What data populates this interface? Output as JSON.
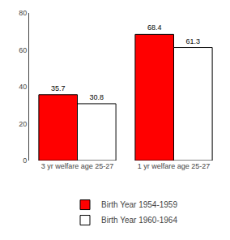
{
  "chart_data": {
    "type": "bar",
    "categories": [
      "3 yr welfare age 25-27",
      "1 yr welfare age 25-27"
    ],
    "series": [
      {
        "name": "Birth Year 1954-1959",
        "color": "#ff0000",
        "values": [
          35.7,
          68.4
        ]
      },
      {
        "name": "Birth Year 1960-1964",
        "color": "#ffffff",
        "values": [
          30.8,
          61.3
        ]
      }
    ],
    "ylim": [
      0,
      80
    ],
    "yticks": [
      0,
      20,
      40,
      60,
      80
    ],
    "data_labels": true,
    "grid": false,
    "legend": "bottom"
  }
}
